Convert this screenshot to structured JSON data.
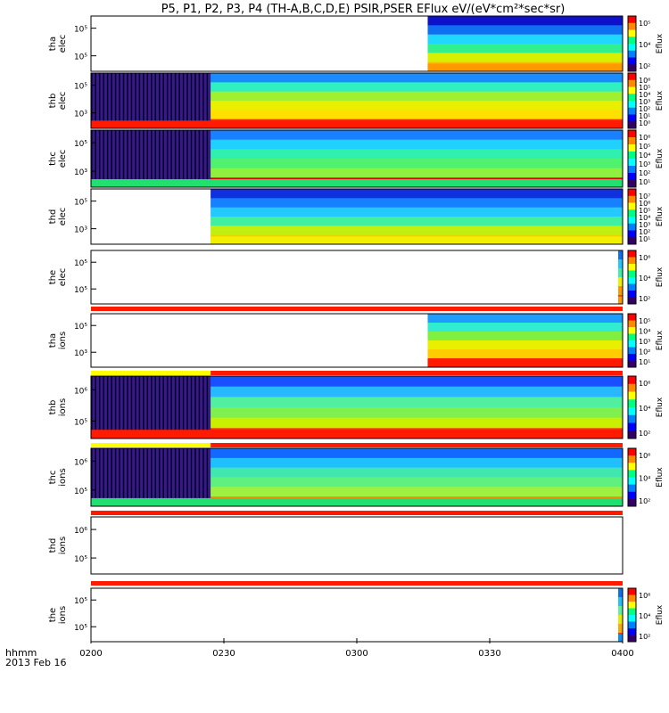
{
  "chart_data": {
    "type": "heatmap",
    "title": "P5, P1, P2, P3, P4 (TH-A,B,C,D,E) PSIR,PSER EFlux eV/(eV*cm²*sec*sr)",
    "x_ticks": [
      "0200",
      "0230",
      "0300",
      "0330",
      "0400"
    ],
    "x_label_line1": "hhmm",
    "x_label_line2": "2013 Feb 16",
    "colorbar_label": "Eflux",
    "panels": [
      {
        "name": "tha-elec",
        "label1": "tha",
        "label2": "elec",
        "y_ticks": [
          "10⁵",
          "10⁵"
        ],
        "colorbar_ticks": [
          "10⁵",
          "10⁴",
          "10²"
        ],
        "data_start_hhmm": "0316",
        "low_band": "orange"
      },
      {
        "name": "thb-elec",
        "label1": "thb",
        "label2": "elec",
        "y_ticks": [
          "10⁵",
          "10³"
        ],
        "colorbar_ticks": [
          "10⁶",
          "10⁵",
          "10⁴",
          "10³",
          "10²",
          "10¹",
          "10⁰"
        ],
        "data_start_hhmm": "0200",
        "low_band": "red"
      },
      {
        "name": "thc-elec",
        "label1": "thc",
        "label2": "elec",
        "y_ticks": [
          "10⁵",
          "10³"
        ],
        "colorbar_ticks": [
          "10⁶",
          "10⁵",
          "10⁴",
          "10³",
          "10²",
          "10¹"
        ],
        "data_start_hhmm": "0200",
        "low_band": "green"
      },
      {
        "name": "thd-elec",
        "label1": "thd",
        "label2": "elec",
        "y_ticks": [
          "10⁵",
          "10³"
        ],
        "colorbar_ticks": [
          "10⁷",
          "10⁶",
          "10⁵",
          "10⁴",
          "10³",
          "10²",
          "10¹"
        ],
        "data_start_hhmm": "0227",
        "low_band": "yellow"
      },
      {
        "name": "the-elec",
        "label1": "the",
        "label2": "elec",
        "y_ticks": [
          "10⁵",
          "10⁵"
        ],
        "colorbar_ticks": [
          "10⁶",
          "10⁴",
          "10²"
        ],
        "data_start_hhmm": "0359",
        "low_band": "orange"
      },
      {
        "name": "tha-ions",
        "label1": "tha",
        "label2": "ions",
        "y_ticks": [
          "10⁵",
          "10³"
        ],
        "colorbar_ticks": [
          "10⁵",
          "10⁴",
          "10³",
          "10²",
          "10¹"
        ],
        "data_start_hhmm": "0316",
        "low_band": "red"
      },
      {
        "name": "thb-ions",
        "label1": "thb",
        "label2": "ions",
        "y_ticks": [
          "10⁶",
          "10⁵"
        ],
        "colorbar_ticks": [
          "10⁶",
          "10⁴",
          "10²"
        ],
        "data_start_hhmm": "0200",
        "low_band": "red"
      },
      {
        "name": "thc-ions",
        "label1": "thc",
        "label2": "ions",
        "y_ticks": [
          "10⁶",
          "10⁵"
        ],
        "colorbar_ticks": [
          "10⁶",
          "10⁴",
          "10²"
        ],
        "data_start_hhmm": "0200",
        "low_band": "green"
      },
      {
        "name": "thd-ions",
        "label1": "thd",
        "label2": "ions",
        "y_ticks": [
          "10⁶",
          "10⁵"
        ],
        "colorbar_ticks": [],
        "data_start_hhmm": "none",
        "low_band": "none"
      },
      {
        "name": "the-ions",
        "label1": "the",
        "label2": "ions",
        "y_ticks": [
          "10⁵",
          "10⁵"
        ],
        "colorbar_ticks": [
          "10⁶",
          "10⁴",
          "10²"
        ],
        "data_start_hhmm": "0359",
        "low_band": "blue"
      }
    ],
    "grid": false
  }
}
